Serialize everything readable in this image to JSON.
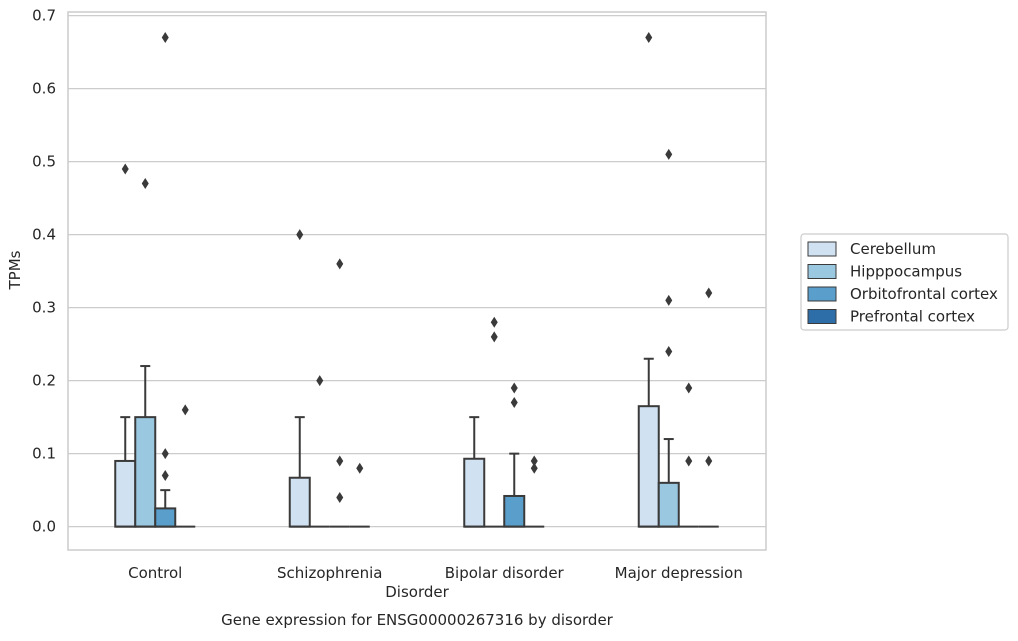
{
  "caption": "Gene expression for ENSG00000267316 by disorder",
  "chart_data": {
    "type": "box",
    "title": "",
    "xlabel": "Disorder",
    "ylabel": "TPMs",
    "ylim": [
      -0.032,
      0.705
    ],
    "yticks": [
      0.0,
      0.1,
      0.2,
      0.3,
      0.4,
      0.5,
      0.6,
      0.7
    ],
    "ytick_labels": [
      "0.0",
      "0.1",
      "0.2",
      "0.3",
      "0.4",
      "0.5",
      "0.6",
      "0.7"
    ],
    "grid": "horizontal",
    "legend_position": "right",
    "categories": [
      "Control",
      "Schizophrenia",
      "Bipolar disorder",
      "Major depression"
    ],
    "series": [
      {
        "name": "Cerebellum",
        "color": "#d0e1f2",
        "boxes": [
          {
            "q1": 0.0,
            "median": 0.0,
            "q3": 0.09,
            "whisker_low": 0.0,
            "whisker_high": 0.15,
            "outliers": [
              0.49
            ]
          },
          {
            "q1": 0.0,
            "median": 0.0,
            "q3": 0.067,
            "whisker_low": 0.0,
            "whisker_high": 0.15,
            "outliers": [
              0.4
            ]
          },
          {
            "q1": 0.0,
            "median": 0.0,
            "q3": 0.093,
            "whisker_low": 0.0,
            "whisker_high": 0.15,
            "outliers": []
          },
          {
            "q1": 0.0,
            "median": 0.0,
            "q3": 0.165,
            "whisker_low": 0.0,
            "whisker_high": 0.23,
            "outliers": [
              0.67
            ]
          }
        ]
      },
      {
        "name": "Hipppocampus",
        "color": "#9ac8e0",
        "boxes": [
          {
            "q1": 0.0,
            "median": 0.0,
            "q3": 0.15,
            "whisker_low": 0.0,
            "whisker_high": 0.22,
            "outliers": [
              0.47
            ]
          },
          {
            "q1": 0.0,
            "median": 0.0,
            "q3": 0.0,
            "whisker_low": 0.0,
            "whisker_high": 0.0,
            "outliers": [
              0.2
            ]
          },
          {
            "q1": 0.0,
            "median": 0.0,
            "q3": 0.0,
            "whisker_low": 0.0,
            "whisker_high": 0.0,
            "outliers": [
              0.28,
              0.26
            ]
          },
          {
            "q1": 0.0,
            "median": 0.0,
            "q3": 0.06,
            "whisker_low": 0.0,
            "whisker_high": 0.12,
            "outliers": [
              0.51,
              0.31,
              0.24
            ]
          }
        ]
      },
      {
        "name": "Orbitofrontal cortex",
        "color": "#5a9fcc",
        "boxes": [
          {
            "q1": 0.0,
            "median": 0.0,
            "q3": 0.025,
            "whisker_low": 0.0,
            "whisker_high": 0.05,
            "outliers": [
              0.67,
              0.1,
              0.07
            ]
          },
          {
            "q1": 0.0,
            "median": 0.0,
            "q3": 0.0,
            "whisker_low": 0.0,
            "whisker_high": 0.0,
            "outliers": [
              0.36,
              0.09,
              0.04
            ]
          },
          {
            "q1": 0.0,
            "median": 0.0,
            "q3": 0.042,
            "whisker_low": 0.0,
            "whisker_high": 0.1,
            "outliers": [
              0.19,
              0.17
            ]
          },
          {
            "q1": 0.0,
            "median": 0.0,
            "q3": 0.0,
            "whisker_low": 0.0,
            "whisker_high": 0.0,
            "outliers": [
              0.19,
              0.09
            ]
          }
        ]
      },
      {
        "name": "Prefrontal cortex",
        "color": "#2d6ea8",
        "boxes": [
          {
            "q1": 0.0,
            "median": 0.0,
            "q3": 0.0,
            "whisker_low": 0.0,
            "whisker_high": 0.0,
            "outliers": [
              0.16
            ]
          },
          {
            "q1": 0.0,
            "median": 0.0,
            "q3": 0.0,
            "whisker_low": 0.0,
            "whisker_high": 0.0,
            "outliers": [
              0.08
            ]
          },
          {
            "q1": 0.0,
            "median": 0.0,
            "q3": 0.0,
            "whisker_low": 0.0,
            "whisker_high": 0.0,
            "outliers": [
              0.09,
              0.08
            ]
          },
          {
            "q1": 0.0,
            "median": 0.0,
            "q3": 0.0,
            "whisker_low": 0.0,
            "whisker_high": 0.0,
            "outliers": [
              0.32,
              0.09
            ]
          }
        ]
      }
    ]
  }
}
